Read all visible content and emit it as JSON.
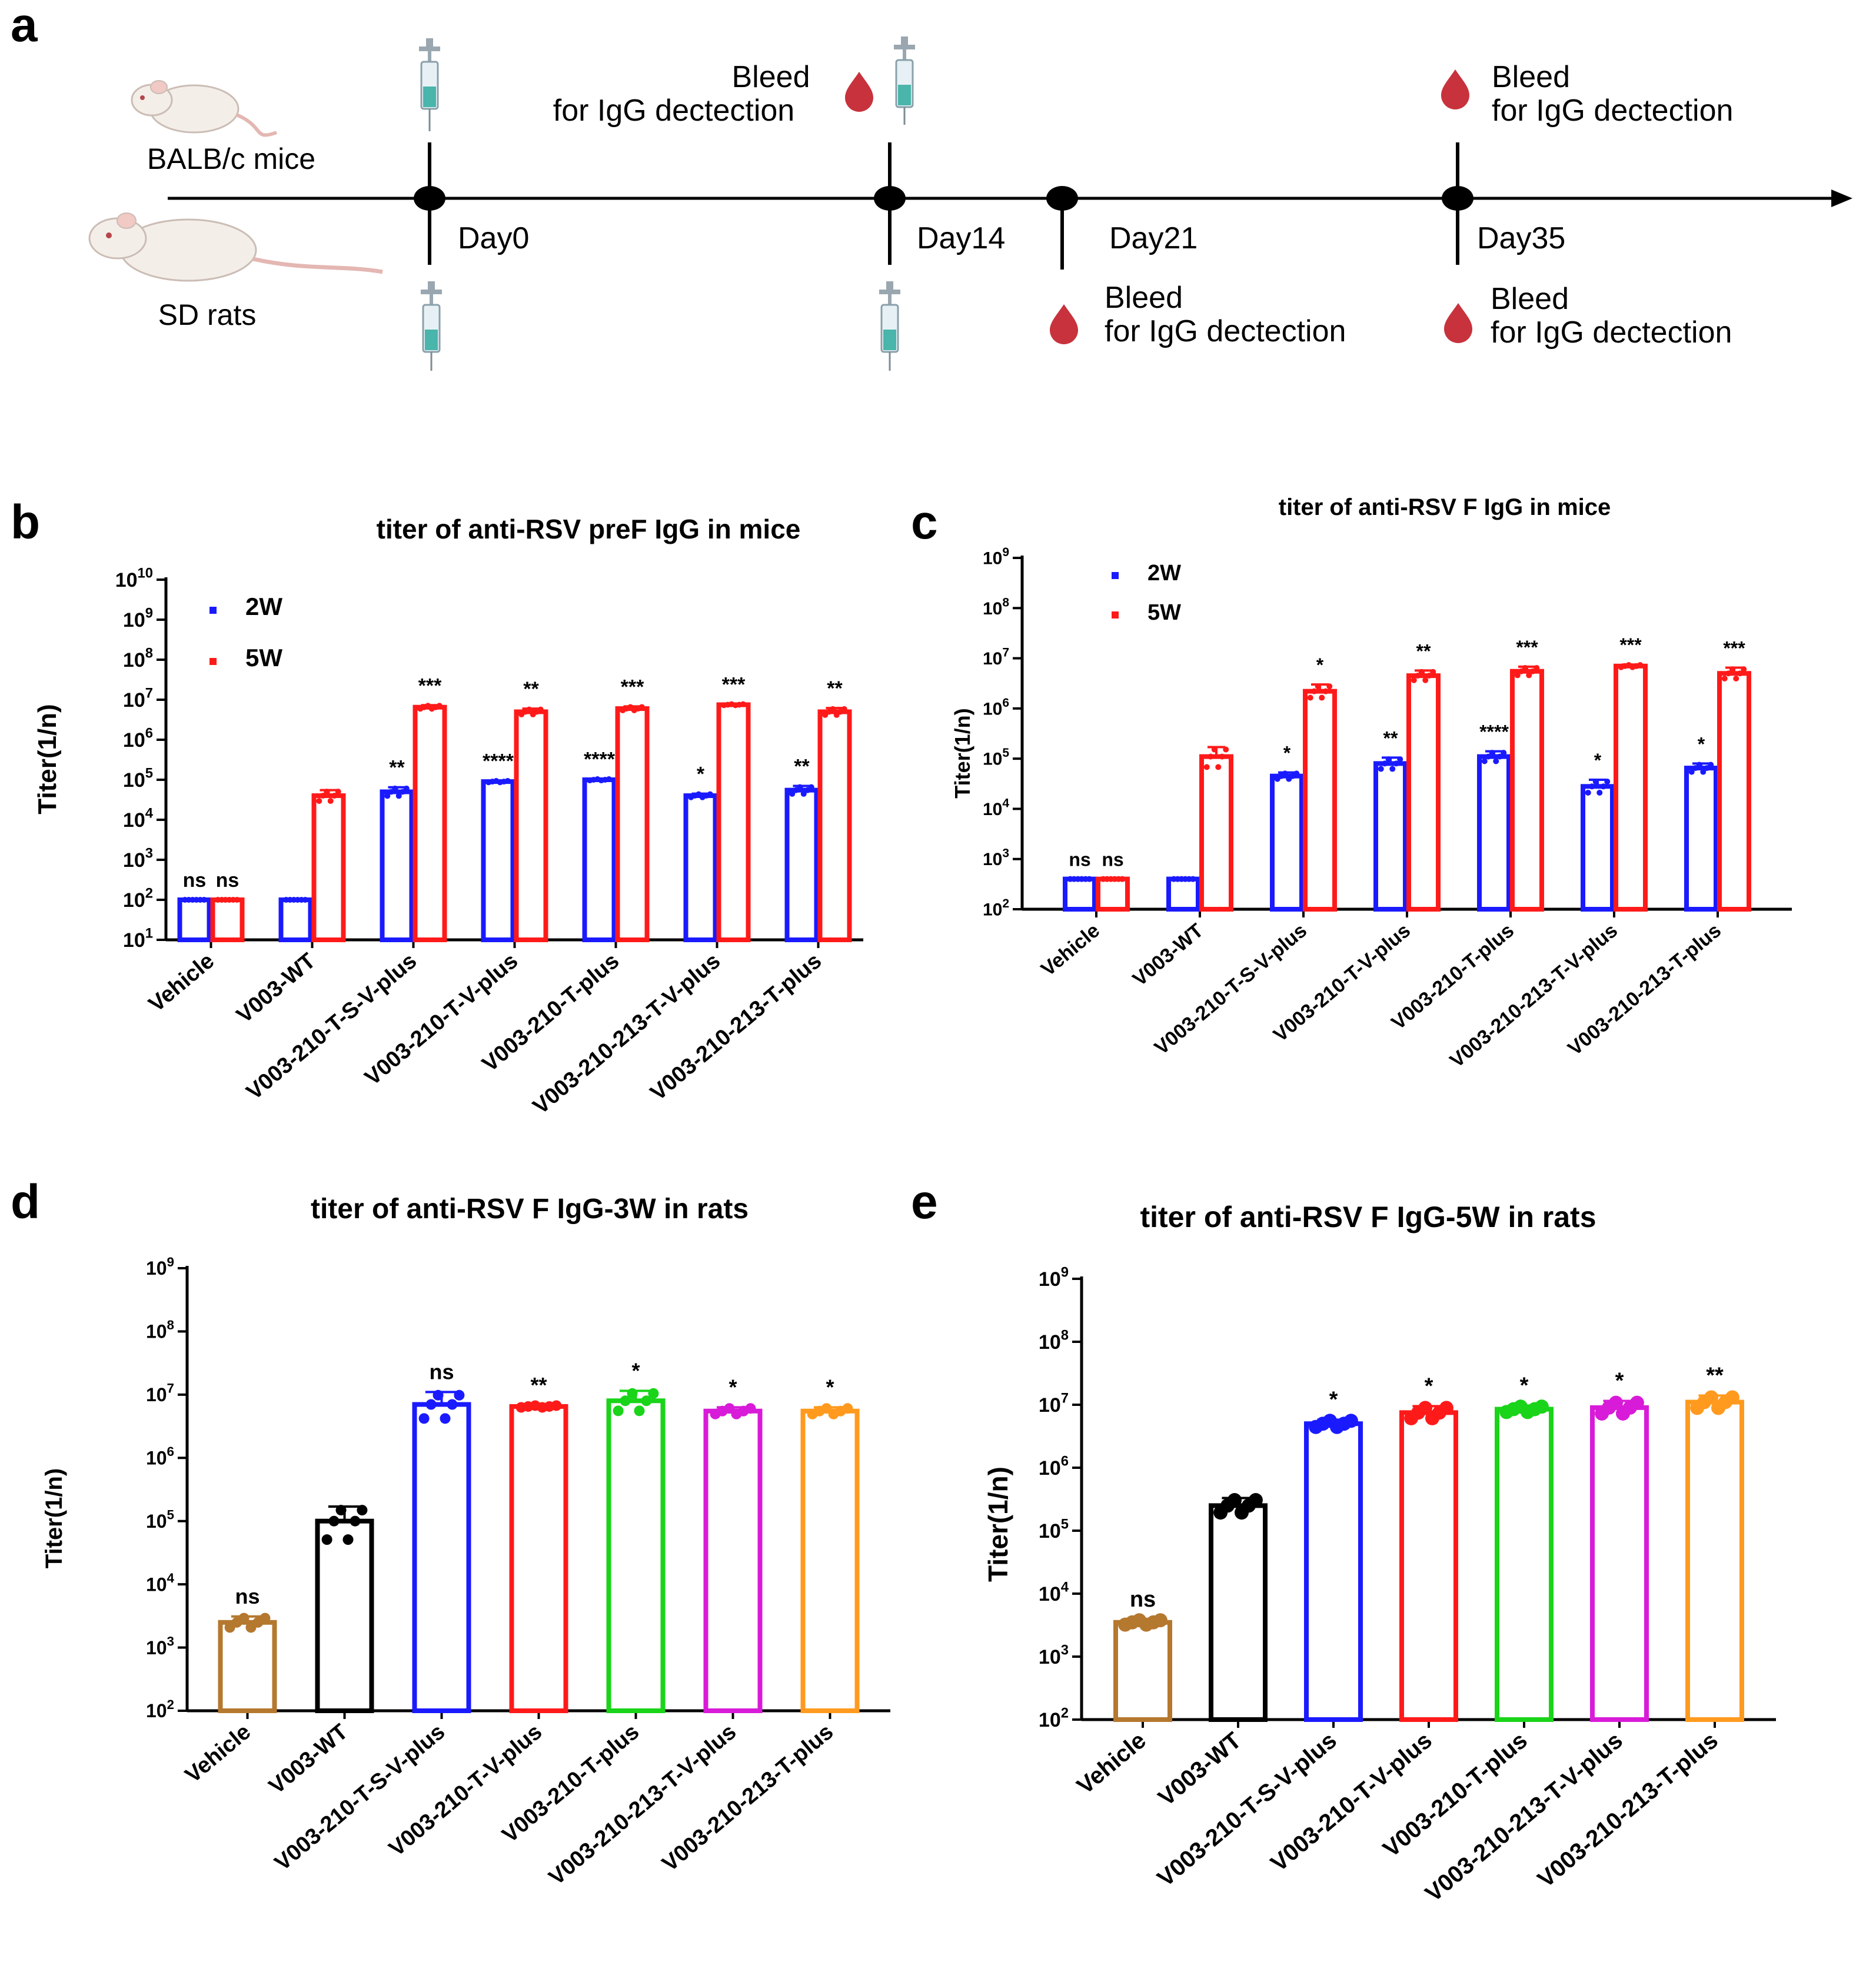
{
  "colors": {
    "blue": "#1a1aff",
    "red": "#ff1a1a",
    "black": "#000000",
    "brown": "#b5782f",
    "green": "#19d419",
    "magenta": "#d81bd8",
    "orange": "#ff9a1e",
    "blood": "#c8323c"
  },
  "timeline": {
    "panel_label": "a",
    "mice_label": "BALB/c mice",
    "rats_label": "SD rats",
    "days": [
      "Day0",
      "Day14",
      "Day21",
      "Day35"
    ],
    "bleed_word": "Bleed",
    "bleed_purpose": "for IgG dectection"
  },
  "chart_data": [
    {
      "id": "b",
      "panel_label": "b",
      "type": "bar",
      "title": "titer of anti-RSV preF IgG in mice",
      "ylabel": "Titer(1/n)",
      "yscale": "log",
      "ylim_exp": [
        1,
        10
      ],
      "categories": [
        "Vehicle",
        "V003-WT",
        "V003-210-T-S-V-plus",
        "V003-210-T-V-plus",
        "V003-210-T-plus",
        "V003-210-213-T-V-plus",
        "V003-210-213-T-plus"
      ],
      "legend": [
        "2W",
        "5W"
      ],
      "series": [
        {
          "name": "2W",
          "color": "#1a1aff",
          "values": [
            100,
            100,
            50000,
            90000,
            100000,
            40000,
            55000
          ],
          "errors": [
            0,
            0,
            15000,
            5000,
            5000,
            5000,
            15000
          ],
          "sig": [
            "ns",
            "",
            "**",
            "****",
            "****",
            "*",
            "**"
          ]
        },
        {
          "name": "5W",
          "color": "#ff1a1a",
          "values": [
            100,
            40000,
            6500000,
            5000000,
            6000000,
            7500000,
            5000000
          ],
          "errors": [
            0,
            15000,
            800000,
            1000000,
            800000,
            300000,
            1200000
          ],
          "sig": [
            "ns",
            "",
            "***",
            "**",
            "***",
            "***",
            "**"
          ]
        }
      ]
    },
    {
      "id": "c",
      "panel_label": "c",
      "type": "bar",
      "title": "titer of anti-RSV F IgG in mice",
      "ylabel": "Titer(1/n)",
      "yscale": "log",
      "ylim_exp": [
        2,
        9
      ],
      "categories": [
        "Vehicle",
        "V003-WT",
        "V003-210-T-S-V-plus",
        "V003-210-T-V-plus",
        "V003-210-T-plus",
        "V003-210-213-T-V-plus",
        "V003-210-213-T-plus"
      ],
      "legend": [
        "2W",
        "5W"
      ],
      "series": [
        {
          "name": "2W",
          "color": "#1a1aff",
          "values": [
            400,
            400,
            45000,
            80000,
            110000,
            28000,
            65000
          ],
          "errors": [
            0,
            0,
            8000,
            25000,
            30000,
            10000,
            15000
          ],
          "sig": [
            "ns",
            "",
            "*",
            "**",
            "****",
            "*",
            "*"
          ]
        },
        {
          "name": "5W",
          "color": "#ff1a1a",
          "values": [
            400,
            110000,
            2200000,
            4500000,
            5500000,
            7000000,
            5000000
          ],
          "errors": [
            0,
            60000,
            800000,
            1200000,
            1300000,
            500000,
            1500000
          ],
          "sig": [
            "ns",
            "",
            "*",
            "**",
            "***",
            "***",
            "***"
          ]
        }
      ]
    },
    {
      "id": "d",
      "panel_label": "d",
      "type": "bar",
      "title": "titer of anti-RSV F IgG-3W in rats",
      "ylabel": "Titer(1/n)",
      "yscale": "log",
      "ylim_exp": [
        2,
        9
      ],
      "categories": [
        "Vehicle",
        "V003-WT",
        "V003-210-T-S-V-plus",
        "V003-210-T-V-plus",
        "V003-210-T-plus",
        "V003-210-213-T-V-plus",
        "V003-210-213-T-plus"
      ],
      "series": [
        {
          "name": "3W",
          "colors": [
            "#b5782f",
            "#000000",
            "#1a1aff",
            "#ff1a1a",
            "#19d419",
            "#d81bd8",
            "#ff9a1e"
          ],
          "values": [
            2500,
            100000,
            7000000,
            6500000,
            8000000,
            5500000,
            5500000
          ],
          "errors": [
            600,
            70000,
            4000000,
            300000,
            3500000,
            800000,
            800000
          ],
          "sig": [
            "ns",
            "",
            "ns",
            "**",
            "*",
            "*",
            "*"
          ]
        }
      ]
    },
    {
      "id": "e",
      "panel_label": "e",
      "type": "bar",
      "title": "titer of anti-RSV F IgG-5W in rats",
      "ylabel": "Titer(1/n)",
      "yscale": "log",
      "ylim_exp": [
        2,
        9
      ],
      "categories": [
        "Vehicle",
        "V003-WT",
        "V003-210-T-S-V-plus",
        "V003-210-T-V-plus",
        "V003-210-T-plus",
        "V003-210-213-T-V-plus",
        "V003-210-213-T-plus"
      ],
      "series": [
        {
          "name": "5W",
          "colors": [
            "#b5782f",
            "#000000",
            "#1a1aff",
            "#ff1a1a",
            "#19d419",
            "#d81bd8",
            "#ff9a1e"
          ],
          "values": [
            3500,
            250000,
            5000000,
            7500000,
            8500000,
            9000000,
            11000000
          ],
          "errors": [
            400,
            80000,
            800000,
            2000000,
            1200000,
            2500000,
            3000000
          ],
          "sig": [
            "ns",
            "",
            "*",
            "*",
            "*",
            "*",
            "**"
          ]
        }
      ]
    }
  ]
}
